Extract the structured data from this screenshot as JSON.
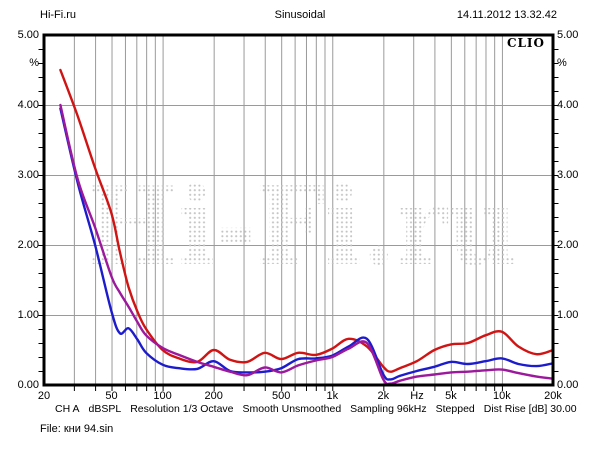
{
  "header": {
    "site": "Hi-Fi.ru",
    "title": "Sinusoidal",
    "datetime": "14.11.2012 13.32.42"
  },
  "chart": {
    "brand": "CLIO",
    "unit": "%",
    "watermark": "Hi-Fi.ru",
    "y_tick_labels": [
      "5.00",
      "4.00",
      "3.00",
      "2.00",
      "1.00",
      "0.00"
    ],
    "x_tick_labels": [
      {
        "label": "20",
        "freq": 20
      },
      {
        "label": "50",
        "freq": 50
      },
      {
        "label": "100",
        "freq": 100
      },
      {
        "label": "200",
        "freq": 200
      },
      {
        "label": "500",
        "freq": 500
      },
      {
        "label": "1k",
        "freq": 1000
      },
      {
        "label": "2k",
        "freq": 2000
      },
      {
        "label": "5k",
        "freq": 5000
      },
      {
        "label": "10k",
        "freq": 10000
      },
      {
        "label": "20k",
        "freq": 20000
      }
    ],
    "x_unit": "Hz",
    "colors": {
      "frame": "#000000",
      "grid": "#9a9a9a",
      "watermark_dots": "#c3c3c3"
    }
  },
  "chart_data": {
    "type": "line",
    "title": "Sinusoidal",
    "xlabel": "Hz",
    "ylabel": "%",
    "xscale": "log",
    "xlim": [
      20,
      20000
    ],
    "ylim": [
      0,
      5
    ],
    "grid": true,
    "legend": "none",
    "x": [
      25,
      31.5,
      40,
      50,
      56,
      63,
      71,
      80,
      100,
      125,
      160,
      200,
      250,
      315,
      400,
      500,
      630,
      800,
      1000,
      1250,
      1600,
      2000,
      2200,
      2500,
      3150,
      4000,
      5000,
      6300,
      8000,
      10000,
      12500,
      16000,
      20000
    ],
    "series": [
      {
        "name": "red-trace",
        "color": "#d01414",
        "values": [
          4.5,
          3.85,
          3.1,
          2.45,
          1.9,
          1.4,
          1.05,
          0.8,
          0.5,
          0.38,
          0.33,
          0.5,
          0.36,
          0.33,
          0.46,
          0.37,
          0.46,
          0.43,
          0.52,
          0.66,
          0.55,
          0.26,
          0.19,
          0.24,
          0.34,
          0.5,
          0.58,
          0.6,
          0.71,
          0.76,
          0.55,
          0.44,
          0.5
        ]
      },
      {
        "name": "blue-trace",
        "color": "#1c1ccd",
        "values": [
          3.95,
          2.9,
          2.0,
          1.05,
          0.74,
          0.81,
          0.65,
          0.46,
          0.29,
          0.24,
          0.23,
          0.34,
          0.2,
          0.18,
          0.19,
          0.24,
          0.37,
          0.38,
          0.42,
          0.55,
          0.66,
          0.15,
          0.08,
          0.13,
          0.2,
          0.26,
          0.33,
          0.3,
          0.34,
          0.38,
          0.3,
          0.27,
          0.31
        ]
      },
      {
        "name": "purple-trace",
        "color": "#9c189c",
        "values": [
          4.0,
          2.95,
          2.25,
          1.55,
          1.32,
          1.12,
          0.9,
          0.71,
          0.53,
          0.43,
          0.33,
          0.26,
          0.19,
          0.14,
          0.25,
          0.18,
          0.28,
          0.35,
          0.4,
          0.52,
          0.6,
          0.08,
          0.02,
          0.06,
          0.12,
          0.15,
          0.18,
          0.19,
          0.21,
          0.22,
          0.17,
          0.12,
          0.09
        ]
      }
    ]
  },
  "footer": {
    "settings": [
      "CH A",
      "dBSPL",
      "Resolution 1/3 Octave",
      "Smooth Unsmoothed",
      "Sampling 96kHz",
      "Stepped",
      "Dist Rise [dB] 30.00"
    ],
    "file": "File: кни 94.sin"
  }
}
